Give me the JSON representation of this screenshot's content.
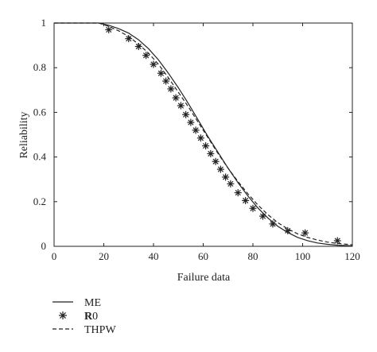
{
  "chart_data": {
    "type": "line",
    "title": "",
    "xlabel": "Failure data",
    "ylabel": "Reliability",
    "xlim": [
      0,
      120
    ],
    "ylim": [
      0,
      1
    ],
    "xticks": [
      "0",
      "20",
      "40",
      "60",
      "80",
      "100",
      "120"
    ],
    "yticks": [
      "0",
      "0.2",
      "0.4",
      "0.6",
      "0.8",
      "1"
    ],
    "grid": false,
    "legend_position": "bottom-left",
    "series": [
      {
        "name": "ME",
        "style": "solid",
        "marker": "none",
        "x": [
          0,
          18,
          22,
          26,
          30,
          34,
          38,
          42,
          46,
          50,
          54,
          58,
          62,
          66,
          70,
          74,
          78,
          82,
          86,
          90,
          94,
          98,
          102,
          106,
          110,
          114,
          118,
          120
        ],
        "y": [
          1.0,
          1.0,
          0.99,
          0.975,
          0.955,
          0.925,
          0.885,
          0.835,
          0.775,
          0.71,
          0.64,
          0.565,
          0.49,
          0.42,
          0.35,
          0.285,
          0.225,
          0.172,
          0.127,
          0.09,
          0.062,
          0.04,
          0.025,
          0.015,
          0.009,
          0.005,
          0.003,
          0.002
        ]
      },
      {
        "name": "R0",
        "style": "none",
        "marker": "asterisk",
        "x": [
          22,
          30,
          34,
          37,
          40,
          43,
          45,
          47,
          49,
          51,
          53,
          55,
          57,
          59,
          61,
          63,
          65,
          67,
          69,
          71,
          74,
          77,
          80,
          84,
          88,
          94,
          101,
          114
        ],
        "y": [
          0.97,
          0.93,
          0.895,
          0.855,
          0.815,
          0.775,
          0.74,
          0.705,
          0.665,
          0.63,
          0.59,
          0.555,
          0.52,
          0.485,
          0.45,
          0.415,
          0.38,
          0.345,
          0.31,
          0.28,
          0.24,
          0.205,
          0.17,
          0.135,
          0.1,
          0.07,
          0.06,
          0.025
        ]
      },
      {
        "name": "THPW",
        "style": "dashed",
        "marker": "none",
        "x": [
          0,
          18,
          22,
          26,
          30,
          34,
          38,
          42,
          46,
          50,
          54,
          58,
          62,
          66,
          70,
          74,
          78,
          82,
          86,
          90,
          94,
          98,
          102,
          106,
          110,
          114,
          118,
          120
        ],
        "y": [
          1.0,
          1.0,
          0.985,
          0.965,
          0.94,
          0.905,
          0.865,
          0.815,
          0.755,
          0.69,
          0.625,
          0.555,
          0.485,
          0.415,
          0.35,
          0.29,
          0.235,
          0.185,
          0.142,
          0.106,
          0.078,
          0.056,
          0.04,
          0.028,
          0.019,
          0.013,
          0.009,
          0.007
        ]
      }
    ],
    "legend": [
      {
        "label": "ME",
        "style": "solid"
      },
      {
        "label": "R0",
        "style": "asterisk",
        "bold_prefix": "R",
        "suffix": "0"
      },
      {
        "label": "THPW",
        "style": "dashed"
      }
    ]
  }
}
